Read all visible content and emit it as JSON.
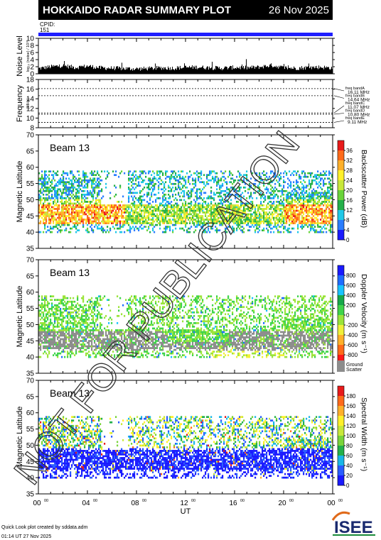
{
  "header": {
    "title": "HOKKAIDO RADAR SUMMARY PLOT",
    "date": "26 Nov 2025",
    "cpid_label": "CPID:",
    "cpid_value": "151"
  },
  "footer": {
    "line1": "Quick Look plot created by sddata.adm",
    "line2": "01:14 UT 27 Nov 2025",
    "logo_text": "ISEE"
  },
  "watermark": "NOT FOR PUBLICATION",
  "colors": {
    "cpid_bar": "#1f1fff",
    "ground_scatter": "#8c8c8c",
    "velocity_scale": [
      "#1a1aff",
      "#1f6dff",
      "#19c3ff",
      "#17a84a",
      "#3fd44a",
      "#9be43a",
      "#f0f03a",
      "#ffb02a",
      "#ff6a1a",
      "#ff1a1a"
    ],
    "power_scale": [
      "#1a1aff",
      "#2a7dff",
      "#20c8e8",
      "#24b04a",
      "#6ad43a",
      "#c8e83a",
      "#fff02a",
      "#ffb02a",
      "#ff6a1a",
      "#e81a1a"
    ]
  },
  "chart_data": [
    {
      "type": "area",
      "panel": "noise",
      "ylabel": "Noise Level",
      "ylabel_sub": "log₁₀ (noise) / 10¹⁰",
      "ylim": [
        0,
        10
      ],
      "yticks": [
        0,
        2,
        4,
        6,
        8,
        10
      ],
      "xlim": [
        0,
        24
      ],
      "series": [
        {
          "x": [
            0,
            1,
            2,
            3,
            4,
            5,
            6,
            7,
            8,
            9,
            10,
            11,
            12,
            13,
            14,
            15,
            16,
            17,
            18,
            19,
            20,
            21,
            22,
            23,
            24
          ],
          "values": [
            1.5,
            2.0,
            2.3,
            1.8,
            2.2,
            1.7,
            1.6,
            1.5,
            1.4,
            1.5,
            1.7,
            1.6,
            1.8,
            1.9,
            1.7,
            1.6,
            1.8,
            1.7,
            1.9,
            2.4,
            1.7,
            1.6,
            1.8,
            1.9,
            1.6
          ]
        }
      ]
    },
    {
      "type": "line",
      "panel": "frequency",
      "ylabel": "Frequency",
      "ylabel_sub": "(MHz)",
      "ylim": [
        8,
        18
      ],
      "yticks": [
        8,
        10,
        12,
        14,
        16,
        18
      ],
      "xlim": [
        0,
        24
      ],
      "bands": [
        {
          "name": "freq bandA",
          "label": "16.11 MHz",
          "value": 16.11
        },
        {
          "name": "freq bandB",
          "label": "14.64 MHz",
          "value": 14.64
        },
        {
          "name": "freq bandC",
          "label": "11.07 MHz",
          "value": 11.07
        },
        {
          "name": "freq bandD",
          "label": "10.80 MHz",
          "value": 10.8
        },
        {
          "name": "freq bandE",
          "label": "9.11 MHz",
          "value": 9.11
        }
      ]
    },
    {
      "type": "heatmap",
      "panel": "power",
      "beam_label": "Beam 13",
      "ylabel": "Magnetic Latitude",
      "ylim": [
        35,
        70
      ],
      "yticks": [
        35,
        40,
        45,
        50,
        55,
        60,
        65,
        70
      ],
      "xlim": [
        0,
        24
      ],
      "colorbar_label": "Backscatter Power (dB)",
      "colorbar_ticks": [
        0,
        4,
        8,
        12,
        16,
        20,
        24,
        28,
        32,
        36
      ],
      "colorbar_range": [
        0,
        40
      ]
    },
    {
      "type": "heatmap",
      "panel": "velocity",
      "beam_label": "Beam 13",
      "ylabel": "Magnetic Latitude",
      "ylim": [
        35,
        70
      ],
      "yticks": [
        35,
        40,
        45,
        50,
        55,
        60,
        65,
        70
      ],
      "xlim": [
        0,
        24
      ],
      "colorbar_label": "Doppler Velocity (m s⁻¹)",
      "colorbar_ticks": [
        -800,
        -600,
        -400,
        -200,
        0,
        200,
        400,
        600,
        800
      ],
      "colorbar_range": [
        -1000,
        1000
      ],
      "gs_label": [
        "Ground",
        "Scatter"
      ]
    },
    {
      "type": "heatmap",
      "panel": "width",
      "beam_label": "Beam 13",
      "ylabel": "Magnetic Latitude",
      "ylim": [
        35,
        70
      ],
      "yticks": [
        35,
        40,
        45,
        50,
        55,
        60,
        65,
        70
      ],
      "xlim": [
        0,
        24
      ],
      "xlabel": "UT",
      "xticks": [
        "00",
        "04",
        "08",
        "12",
        "16",
        "20",
        "00"
      ],
      "xtick_sup": "00",
      "colorbar_label": "Spectral Width (m s⁻¹)",
      "colorbar_ticks": [
        0,
        20,
        40,
        60,
        80,
        100,
        120,
        140,
        160,
        180
      ],
      "colorbar_range": [
        0,
        200
      ]
    }
  ]
}
